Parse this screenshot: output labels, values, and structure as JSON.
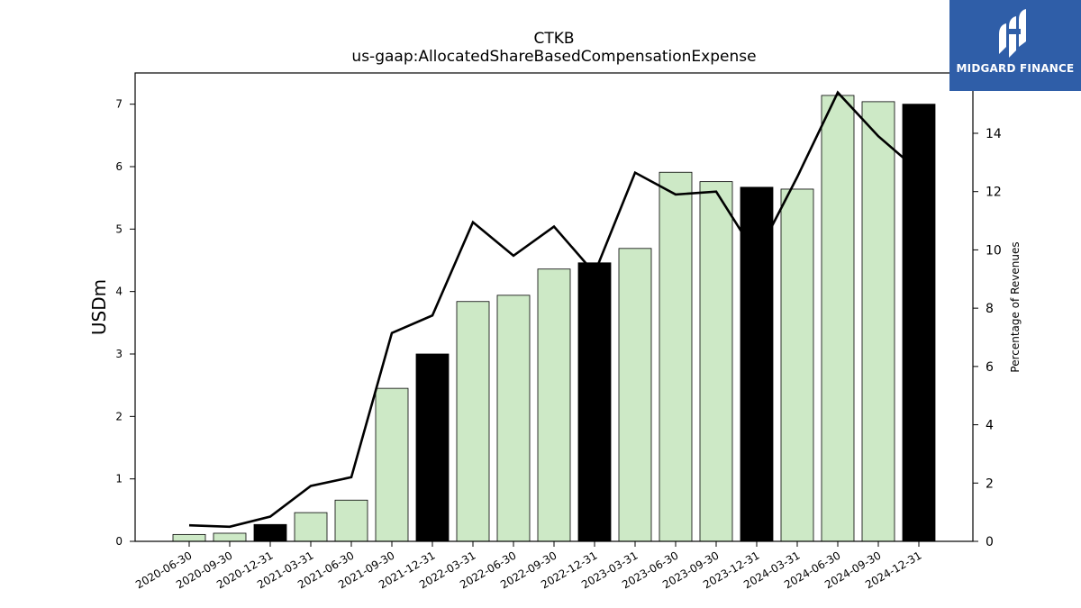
{
  "chart_data": {
    "type": "bar",
    "title": "CTKB",
    "subtitle": "us-gaap:AllocatedShareBasedCompensationExpense",
    "ylabel": "USDm",
    "y2label": "Percentage of Revenues",
    "ylim": [
      0,
      7.5
    ],
    "y2lim": [
      0,
      16.07
    ],
    "yticks": [
      0,
      1,
      2,
      3,
      4,
      5,
      6,
      7
    ],
    "y2ticks": [
      0,
      2,
      4,
      6,
      8,
      10,
      12,
      14
    ],
    "categories": [
      "2020-06-30",
      "2020-09-30",
      "2020-12-31",
      "2021-03-31",
      "2021-06-30",
      "2021-09-30",
      "2021-12-31",
      "2022-03-31",
      "2022-06-30",
      "2022-09-30",
      "2022-12-31",
      "2023-03-31",
      "2023-06-30",
      "2023-09-30",
      "2023-12-31",
      "2024-03-31",
      "2024-06-30",
      "2024-09-30",
      "2024-12-31"
    ],
    "series": [
      {
        "kind": "bar",
        "values": [
          0.11,
          0.13,
          0.27,
          0.46,
          0.66,
          2.45,
          3.0,
          3.84,
          3.94,
          4.36,
          4.46,
          4.69,
          5.91,
          5.76,
          5.67,
          5.64,
          7.14,
          7.04,
          7.0
        ],
        "fiscal_year_end": [
          false,
          false,
          true,
          false,
          false,
          false,
          true,
          false,
          false,
          false,
          true,
          false,
          false,
          false,
          true,
          false,
          false,
          false,
          true
        ]
      },
      {
        "kind": "line",
        "axis": "right",
        "values": [
          0.55,
          0.5,
          0.85,
          1.9,
          2.2,
          7.15,
          7.75,
          10.95,
          9.8,
          10.8,
          9.2,
          12.65,
          11.9,
          12.0,
          9.8,
          12.5,
          15.4,
          13.9,
          12.7
        ]
      }
    ],
    "colors": {
      "bar": "#cde9c6",
      "bar_fiscal_year_end": "#000000",
      "bar_edge": "#000000",
      "line": "#000000"
    },
    "grid": false,
    "legend": "none"
  },
  "logo": {
    "text": "MIDGARD FINANCE",
    "icon": "midgard-logo-icon",
    "color": "#2f5ea8"
  }
}
